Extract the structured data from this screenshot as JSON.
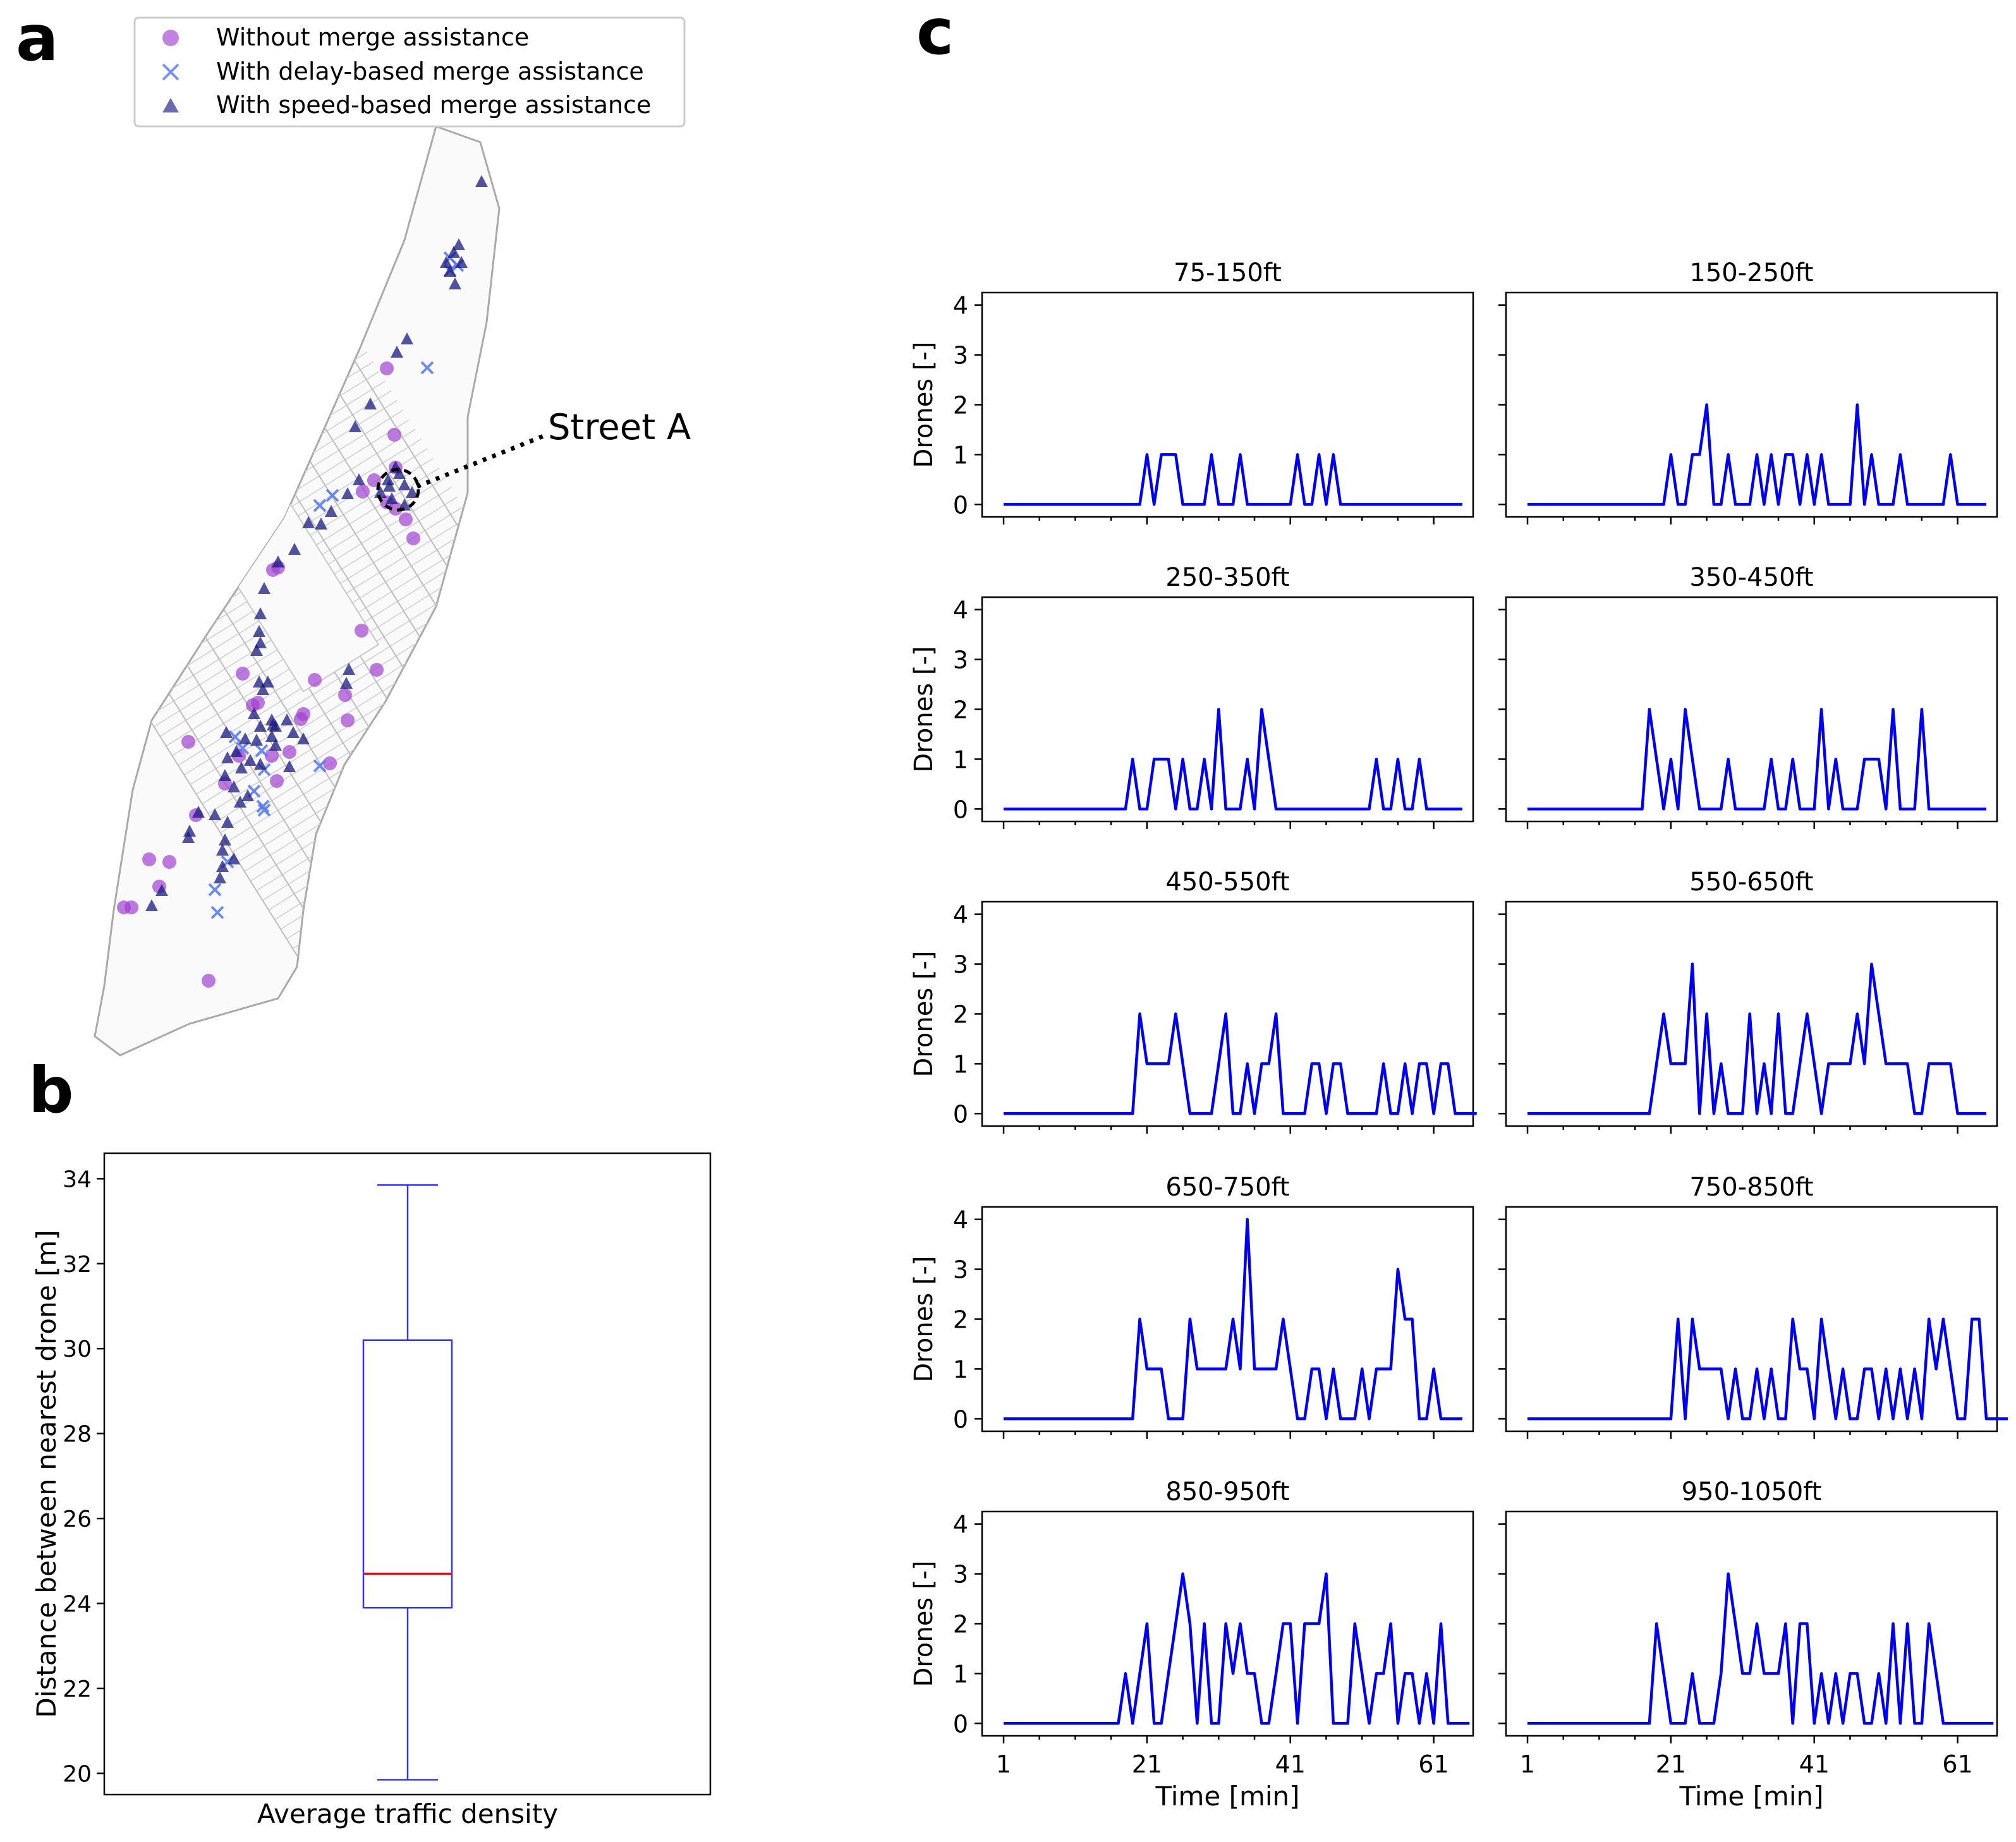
{
  "panels": {
    "a": {
      "label": "a",
      "legend": [
        {
          "label": "Without merge assistance",
          "marker": "circle",
          "color": "#a040d0"
        },
        {
          "label": "With delay-based merge assistance",
          "marker": "x",
          "color": "#5577ee"
        },
        {
          "label": "With speed-based merge assistance",
          "marker": "triangle",
          "color": "#1a1a80"
        }
      ],
      "annotation": "Street A"
    },
    "b": {
      "label": "b"
    },
    "c": {
      "label": "c"
    }
  },
  "chart_data": [
    {
      "type": "scatter",
      "panel": "a",
      "description_of_content": "Map of Manhattan street network with merge event locations",
      "series": [
        {
          "name": "Without merge assistance",
          "color": "#a040d0"
        },
        {
          "name": "With delay-based merge assistance",
          "color": "#5577ee"
        },
        {
          "name": "With speed-based merge assistance",
          "color": "#1a1a80"
        }
      ],
      "annotations": [
        "Street A"
      ]
    },
    {
      "type": "box",
      "panel": "b",
      "xlabel": "Average traffic density",
      "ylabel": "Distance between nearest drone [m]",
      "ylim": [
        19.5,
        34.6
      ],
      "yticks": [
        20,
        22,
        24,
        26,
        28,
        30,
        32,
        34
      ],
      "box": {
        "min": 19.85,
        "q1": 23.9,
        "median": 24.7,
        "q3": 30.2,
        "max": 33.85
      },
      "box_color": "#3333ff",
      "median_color": "#ff0000"
    },
    {
      "type": "line",
      "panel": "c",
      "xlabel": "Time [min]",
      "ylabel": "Drones [-]",
      "xticks": [
        1,
        21,
        41,
        61
      ],
      "yticks": [
        0,
        1,
        2,
        3,
        4
      ],
      "xlim": [
        -2,
        66.5
      ],
      "ylim": [
        -0.25,
        4.25
      ],
      "line_color": "#0000ee",
      "subplots": [
        {
          "title": "75-150ft",
          "values": [
            0,
            0,
            0,
            0,
            0,
            0,
            0,
            0,
            0,
            0,
            0,
            0,
            0,
            0,
            0,
            0,
            0,
            0,
            0,
            0,
            1,
            0,
            1,
            1,
            1,
            0,
            0,
            0,
            0,
            1,
            0,
            0,
            0,
            1,
            0,
            0,
            0,
            0,
            0,
            0,
            0,
            1,
            0,
            0,
            1,
            0,
            1,
            0,
            0,
            0,
            0,
            0,
            0,
            0,
            0,
            0,
            0,
            0,
            0,
            0,
            0,
            0,
            0,
            0,
            0
          ]
        },
        {
          "title": "150-250ft",
          "values": [
            0,
            0,
            0,
            0,
            0,
            0,
            0,
            0,
            0,
            0,
            0,
            0,
            0,
            0,
            0,
            0,
            0,
            0,
            0,
            0,
            1,
            0,
            0,
            1,
            1,
            2,
            0,
            0,
            1,
            0,
            0,
            0,
            1,
            0,
            1,
            0,
            1,
            1,
            0,
            1,
            0,
            1,
            0,
            0,
            0,
            0,
            2,
            0,
            1,
            0,
            0,
            0,
            1,
            0,
            0,
            0,
            0,
            0,
            0,
            1,
            0,
            0,
            0,
            0,
            0
          ]
        },
        {
          "title": "250-350ft",
          "values": [
            0,
            0,
            0,
            0,
            0,
            0,
            0,
            0,
            0,
            0,
            0,
            0,
            0,
            0,
            0,
            0,
            0,
            0,
            1,
            0,
            0,
            1,
            1,
            1,
            0,
            1,
            0,
            0,
            1,
            0,
            2,
            0,
            0,
            0,
            1,
            0,
            2,
            1,
            0,
            0,
            0,
            0,
            0,
            0,
            0,
            0,
            0,
            0,
            0,
            0,
            0,
            0,
            1,
            0,
            0,
            1,
            0,
            0,
            1,
            0,
            0,
            0,
            0,
            0,
            0
          ]
        },
        {
          "title": "350-450ft",
          "values": [
            0,
            0,
            0,
            0,
            0,
            0,
            0,
            0,
            0,
            0,
            0,
            0,
            0,
            0,
            0,
            0,
            0,
            2,
            1,
            0,
            1,
            0,
            2,
            1,
            0,
            0,
            0,
            0,
            1,
            0,
            0,
            0,
            0,
            0,
            1,
            0,
            0,
            1,
            0,
            0,
            0,
            2,
            0,
            1,
            0,
            0,
            0,
            1,
            1,
            1,
            0,
            2,
            0,
            0,
            0,
            2,
            0,
            0,
            0,
            0,
            0,
            0,
            0,
            0,
            0
          ]
        },
        {
          "title": "450-550ft",
          "values": [
            0,
            0,
            0,
            0,
            0,
            0,
            0,
            0,
            0,
            0,
            0,
            0,
            0,
            0,
            0,
            0,
            0,
            0,
            0,
            2,
            1,
            1,
            1,
            1,
            2,
            1,
            0,
            0,
            0,
            0,
            1,
            2,
            0,
            0,
            1,
            0,
            1,
            1,
            2,
            0,
            0,
            0,
            0,
            1,
            1,
            0,
            1,
            1,
            0,
            0,
            0,
            0,
            0,
            1,
            0,
            0,
            1,
            0,
            1,
            1,
            0,
            1,
            1,
            0,
            0,
            0,
            0
          ]
        },
        {
          "title": "550-650ft",
          "values": [
            0,
            0,
            0,
            0,
            0,
            0,
            0,
            0,
            0,
            0,
            0,
            0,
            0,
            0,
            0,
            0,
            0,
            0,
            1,
            2,
            1,
            1,
            1,
            3,
            0,
            2,
            0,
            1,
            0,
            0,
            0,
            2,
            0,
            1,
            0,
            2,
            0,
            0,
            1,
            2,
            1,
            0,
            1,
            1,
            1,
            1,
            2,
            1,
            3,
            2,
            1,
            1,
            1,
            1,
            0,
            0,
            1,
            1,
            1,
            1,
            0,
            0,
            0,
            0,
            0
          ]
        },
        {
          "title": "650-750ft",
          "values": [
            0,
            0,
            0,
            0,
            0,
            0,
            0,
            0,
            0,
            0,
            0,
            0,
            0,
            0,
            0,
            0,
            0,
            0,
            0,
            2,
            1,
            1,
            1,
            0,
            0,
            0,
            2,
            1,
            1,
            1,
            1,
            1,
            2,
            1,
            4,
            1,
            1,
            1,
            1,
            2,
            1,
            0,
            0,
            1,
            1,
            0,
            1,
            0,
            0,
            0,
            1,
            0,
            1,
            1,
            1,
            3,
            2,
            2,
            0,
            0,
            1,
            0,
            0,
            0,
            0
          ]
        },
        {
          "title": "750-850ft",
          "values": [
            0,
            0,
            0,
            0,
            0,
            0,
            0,
            0,
            0,
            0,
            0,
            0,
            0,
            0,
            0,
            0,
            0,
            0,
            0,
            0,
            0,
            2,
            0,
            2,
            1,
            1,
            1,
            1,
            0,
            1,
            0,
            0,
            1,
            0,
            1,
            0,
            0,
            2,
            1,
            1,
            0,
            2,
            1,
            0,
            1,
            0,
            0,
            1,
            1,
            0,
            1,
            0,
            1,
            0,
            1,
            0,
            2,
            1,
            2,
            1,
            0,
            0,
            2,
            2,
            0,
            0,
            0,
            0
          ]
        },
        {
          "title": "850-950ft",
          "values": [
            0,
            0,
            0,
            0,
            0,
            0,
            0,
            0,
            0,
            0,
            0,
            0,
            0,
            0,
            0,
            0,
            0,
            1,
            0,
            1,
            2,
            0,
            0,
            1,
            2,
            3,
            2,
            0,
            2,
            0,
            0,
            2,
            1,
            2,
            1,
            1,
            0,
            0,
            1,
            2,
            2,
            0,
            2,
            2,
            2,
            3,
            0,
            0,
            0,
            2,
            1,
            0,
            1,
            1,
            2,
            0,
            1,
            1,
            0,
            1,
            0,
            2,
            0,
            0,
            0,
            0
          ]
        },
        {
          "title": "950-1050ft",
          "values": [
            0,
            0,
            0,
            0,
            0,
            0,
            0,
            0,
            0,
            0,
            0,
            0,
            0,
            0,
            0,
            0,
            0,
            0,
            2,
            1,
            0,
            0,
            0,
            1,
            0,
            0,
            0,
            1,
            3,
            2,
            1,
            1,
            2,
            1,
            1,
            1,
            2,
            0,
            2,
            2,
            0,
            1,
            0,
            1,
            0,
            1,
            1,
            0,
            0,
            1,
            0,
            2,
            0,
            2,
            0,
            0,
            2,
            1,
            0,
            0,
            0,
            0,
            0,
            0,
            0,
            0
          ]
        }
      ]
    }
  ]
}
